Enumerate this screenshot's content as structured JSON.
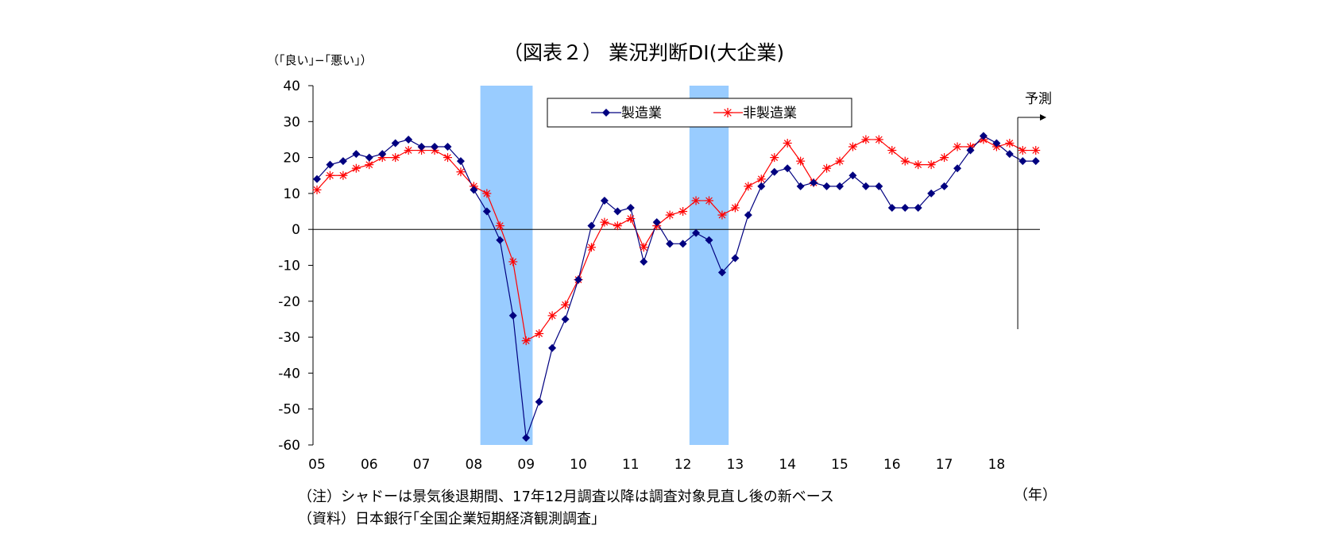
{
  "chart_data": {
    "type": "line",
    "title": "（図表２） 業況判断DI(大企業)",
    "ylabel": "（｢良い｣−｢悪い｣）",
    "xunit": "（年）",
    "ylim": [
      -60,
      40
    ],
    "yticks": [
      40,
      30,
      20,
      10,
      0,
      -10,
      -20,
      -30,
      -40,
      -50,
      -60
    ],
    "year_labels": [
      "05",
      "06",
      "07",
      "08",
      "09",
      "10",
      "11",
      "12",
      "13",
      "14",
      "15",
      "16",
      "17",
      "18"
    ],
    "quarters": [
      "2005Q1",
      "2005Q2",
      "2005Q3",
      "2005Q4",
      "2006Q1",
      "2006Q2",
      "2006Q3",
      "2006Q4",
      "2007Q1",
      "2007Q2",
      "2007Q3",
      "2007Q4",
      "2008Q1",
      "2008Q2",
      "2008Q3",
      "2008Q4",
      "2009Q1",
      "2009Q2",
      "2009Q3",
      "2009Q4",
      "2010Q1",
      "2010Q2",
      "2010Q3",
      "2010Q4",
      "2011Q1",
      "2011Q2",
      "2011Q3",
      "2011Q4",
      "2012Q1",
      "2012Q2",
      "2012Q3",
      "2012Q4",
      "2013Q1",
      "2013Q2",
      "2013Q3",
      "2013Q4",
      "2014Q1",
      "2014Q2",
      "2014Q3",
      "2014Q4",
      "2015Q1",
      "2015Q2",
      "2015Q3",
      "2015Q4",
      "2016Q1",
      "2016Q2",
      "2016Q3",
      "2016Q4",
      "2017Q1",
      "2017Q2",
      "2017Q3",
      "2017Q4",
      "2018Q1",
      "2018Q2",
      "2018Q3",
      "2018Q4"
    ],
    "series": [
      {
        "name": "製造業",
        "color": "#000080",
        "marker": "diamond",
        "values": [
          14,
          18,
          19,
          21,
          20,
          21,
          24,
          25,
          23,
          23,
          23,
          19,
          11,
          5,
          -3,
          -24,
          -58,
          -48,
          -33,
          -25,
          -14,
          1,
          8,
          5,
          6,
          -9,
          2,
          -4,
          -4,
          -1,
          -3,
          -12,
          -8,
          4,
          12,
          16,
          17,
          12,
          13,
          12,
          12,
          15,
          12,
          12,
          6,
          6,
          6,
          10,
          12,
          17,
          22,
          26,
          24,
          21,
          19,
          19
        ]
      },
      {
        "name": "非製造業",
        "color": "#ff0000",
        "marker": "asterisk",
        "values": [
          11,
          15,
          15,
          17,
          18,
          20,
          20,
          22,
          22,
          22,
          20,
          16,
          12,
          10,
          1,
          -9,
          -31,
          -29,
          -24,
          -21,
          -14,
          -5,
          2,
          1,
          3,
          -5,
          1,
          4,
          5,
          8,
          8,
          4,
          6,
          12,
          14,
          20,
          24,
          19,
          13,
          17,
          19,
          23,
          25,
          25,
          22,
          19,
          18,
          18,
          20,
          23,
          23,
          25,
          23,
          24,
          22,
          22
        ]
      }
    ],
    "shaded_periods": [
      {
        "from": "2008Q2",
        "to": "2009Q1"
      },
      {
        "from": "2012Q2",
        "to": "2012Q4"
      }
    ],
    "shade_color": "#99ccff",
    "forecast_label": "予測",
    "forecast_from": "2018Q3",
    "legend_placement": "top-center",
    "grid": false
  },
  "notes": [
    "（注）シャドーは景気後退期間、17年12月調査以降は調査対象見直し後の新ベース",
    "（資料）日本銀行｢全国企業短期経済観測調査｣"
  ]
}
